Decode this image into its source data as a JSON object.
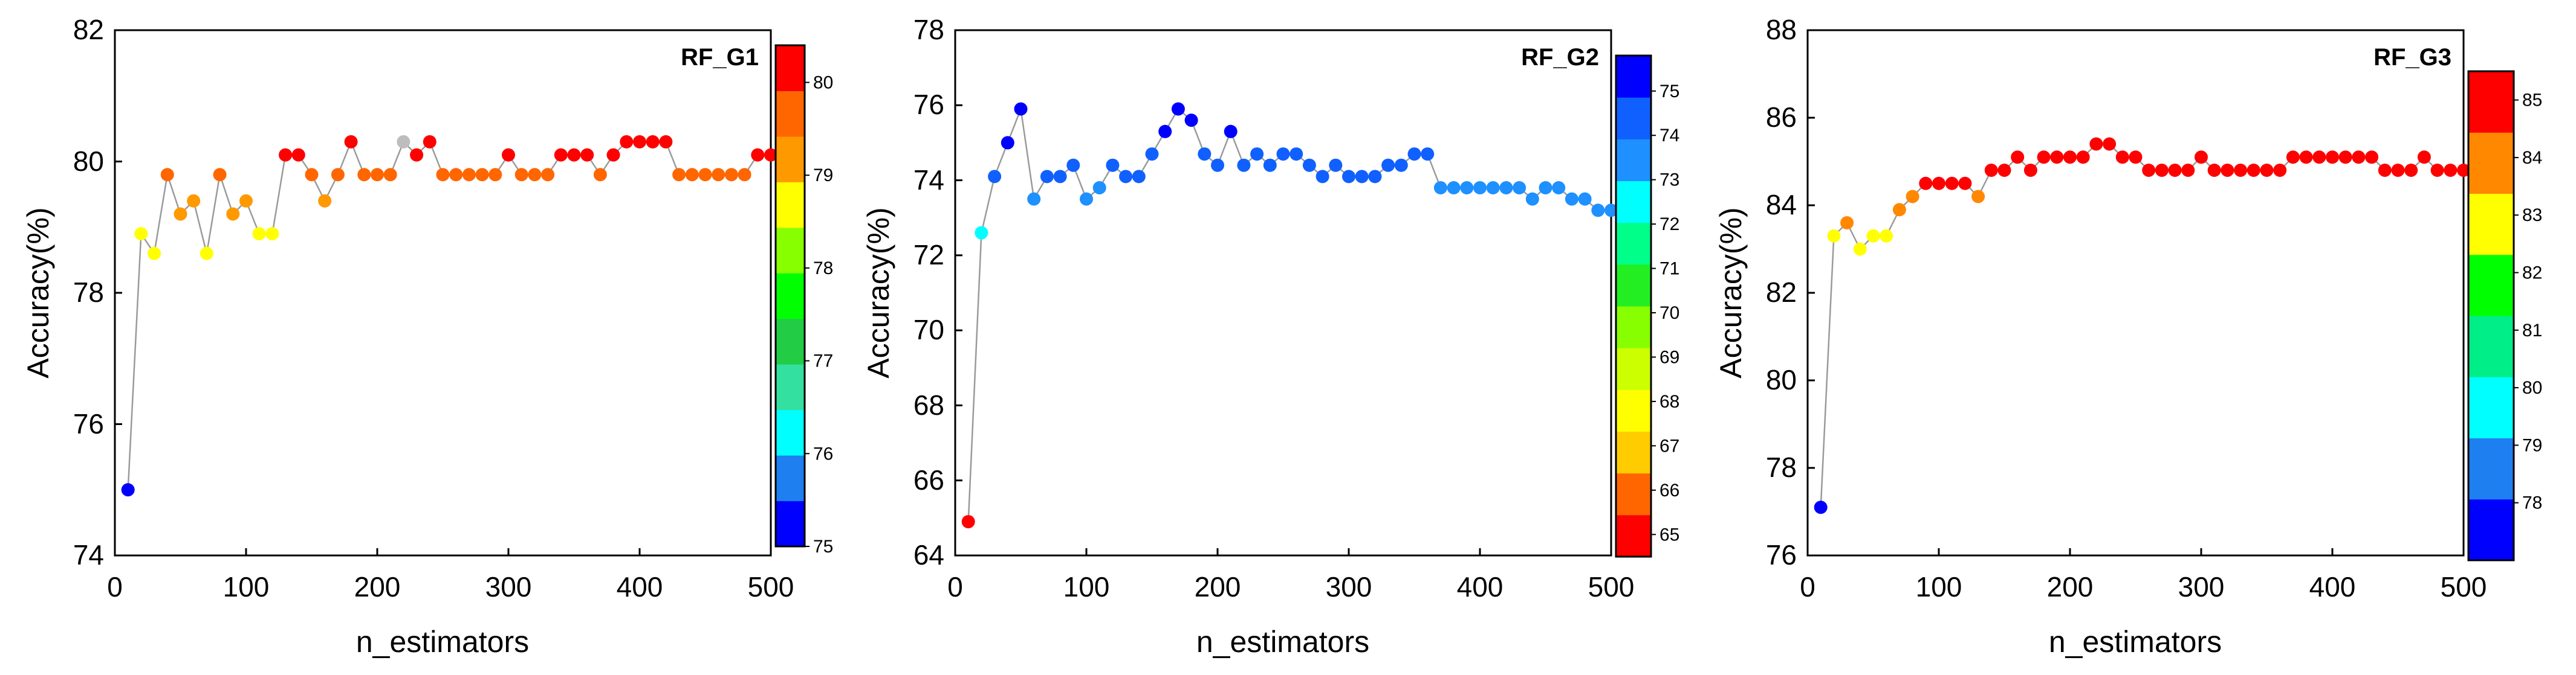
{
  "figure": {
    "panel_count": 3
  },
  "chart_data": [
    {
      "type": "scatter",
      "title": "RF_G1",
      "xlabel": "n_estimators",
      "ylabel": "Accuracy(%)",
      "xlim": [
        0,
        500
      ],
      "ylim": [
        74,
        82
      ],
      "xticks": [
        "0",
        "100",
        "200",
        "300",
        "400",
        "500"
      ],
      "yticks": [
        "74",
        "76",
        "78",
        "80",
        "82"
      ],
      "colorbar": {
        "ticks": [
          "75",
          "76",
          "77",
          "78",
          "79",
          "80"
        ],
        "range": [
          75,
          80.4
        ],
        "colors": [
          "#0000ff",
          "#1e7ff0",
          "#00ffff",
          "#33e0a0",
          "#22cc44",
          "#00ff00",
          "#88ff00",
          "#ffff00",
          "#ff9900",
          "#ff6600",
          "#ff0000"
        ]
      },
      "series": [
        {
          "name": "RF_G1",
          "x": [
            10,
            20,
            30,
            40,
            50,
            60,
            70,
            80,
            90,
            100,
            110,
            120,
            130,
            140,
            150,
            160,
            170,
            180,
            190,
            200,
            210,
            220,
            230,
            240,
            250,
            260,
            270,
            280,
            290,
            300,
            310,
            320,
            330,
            340,
            350,
            360,
            370,
            380,
            390,
            400,
            410,
            420,
            430,
            440,
            450,
            460,
            470,
            480,
            490,
            500
          ],
          "y": [
            75.0,
            78.9,
            78.6,
            79.8,
            79.2,
            79.4,
            78.6,
            79.8,
            79.2,
            79.4,
            78.9,
            78.9,
            80.1,
            80.1,
            79.8,
            79.4,
            79.8,
            80.3,
            79.8,
            79.8,
            79.8,
            80.3,
            80.1,
            80.3,
            79.8,
            79.8,
            79.8,
            79.8,
            79.8,
            80.1,
            79.8,
            79.8,
            79.8,
            80.1,
            80.1,
            80.1,
            79.8,
            80.1,
            80.3,
            80.3,
            80.3,
            80.3,
            79.8,
            79.8,
            79.8,
            79.8,
            79.8,
            79.8,
            80.1,
            80.1
          ],
          "highlight_gray_at_x": 220
        }
      ]
    },
    {
      "type": "scatter",
      "title": "RF_G2",
      "xlabel": "n_estimators",
      "ylabel": "Accuracy(%)",
      "xlim": [
        0,
        500
      ],
      "ylim": [
        64,
        78
      ],
      "xticks": [
        "0",
        "100",
        "200",
        "300",
        "400",
        "500"
      ],
      "yticks": [
        "64",
        "66",
        "68",
        "70",
        "72",
        "74",
        "76",
        "78"
      ],
      "colorbar": {
        "ticks": [
          "65",
          "66",
          "67",
          "68",
          "69",
          "70",
          "71",
          "72",
          "73",
          "74",
          "75"
        ],
        "range": [
          64.5,
          75.8
        ],
        "colors": [
          "#ff0000",
          "#ff6600",
          "#ffcc00",
          "#ffff00",
          "#ccff00",
          "#88ff00",
          "#22ee22",
          "#00ff88",
          "#00ffff",
          "#1e90ff",
          "#1060ff",
          "#0000ff"
        ]
      },
      "series": [
        {
          "name": "RF_G2",
          "x": [
            10,
            20,
            30,
            40,
            50,
            60,
            70,
            80,
            90,
            100,
            110,
            120,
            130,
            140,
            150,
            160,
            170,
            180,
            190,
            200,
            210,
            220,
            230,
            240,
            250,
            260,
            270,
            280,
            290,
            300,
            310,
            320,
            330,
            340,
            350,
            360,
            370,
            380,
            390,
            400,
            410,
            420,
            430,
            440,
            450,
            460,
            470,
            480,
            490,
            500
          ],
          "y": [
            64.9,
            72.6,
            74.1,
            75.0,
            75.9,
            73.5,
            74.1,
            74.1,
            74.4,
            73.5,
            73.8,
            74.4,
            74.1,
            74.1,
            74.7,
            75.3,
            75.9,
            75.6,
            74.7,
            74.4,
            75.3,
            74.4,
            74.7,
            74.4,
            74.7,
            74.7,
            74.4,
            74.1,
            74.4,
            74.1,
            74.1,
            74.1,
            74.4,
            74.4,
            74.7,
            74.7,
            73.8,
            73.8,
            73.8,
            73.8,
            73.8,
            73.8,
            73.8,
            73.5,
            73.8,
            73.8,
            73.5,
            73.5,
            73.2,
            73.2
          ]
        }
      ]
    },
    {
      "type": "scatter",
      "title": "RF_G3",
      "xlabel": "n_estimators",
      "ylabel": "Accuracy(%)",
      "xlim": [
        0,
        500
      ],
      "ylim": [
        76,
        88
      ],
      "xticks": [
        "0",
        "100",
        "200",
        "300",
        "400",
        "500"
      ],
      "yticks": [
        "76",
        "78",
        "80",
        "82",
        "84",
        "86",
        "88"
      ],
      "colorbar": {
        "ticks": [
          "78",
          "79",
          "80",
          "81",
          "82",
          "83",
          "84",
          "85"
        ],
        "range": [
          77.0,
          85.5
        ],
        "colors": [
          "#0000ff",
          "#1e7ff0",
          "#00ffff",
          "#00ee88",
          "#00ff00",
          "#ffff00",
          "#ff8800",
          "#ff0000"
        ]
      },
      "series": [
        {
          "name": "RF_G3",
          "x": [
            10,
            20,
            30,
            40,
            50,
            60,
            70,
            80,
            90,
            100,
            110,
            120,
            130,
            140,
            150,
            160,
            170,
            180,
            190,
            200,
            210,
            220,
            230,
            240,
            250,
            260,
            270,
            280,
            290,
            300,
            310,
            320,
            330,
            340,
            350,
            360,
            370,
            380,
            390,
            400,
            410,
            420,
            430,
            440,
            450,
            460,
            470,
            480,
            490,
            500
          ],
          "y": [
            77.1,
            83.3,
            83.6,
            83.0,
            83.3,
            83.3,
            83.9,
            84.2,
            84.5,
            84.5,
            84.5,
            84.5,
            84.2,
            84.8,
            84.8,
            85.1,
            84.8,
            85.1,
            85.1,
            85.1,
            85.1,
            85.4,
            85.4,
            85.1,
            85.1,
            84.8,
            84.8,
            84.8,
            84.8,
            85.1,
            84.8,
            84.8,
            84.8,
            84.8,
            84.8,
            84.8,
            85.1,
            85.1,
            85.1,
            85.1,
            85.1,
            85.1,
            85.1,
            84.8,
            84.8,
            84.8,
            85.1,
            84.8,
            84.8,
            84.8
          ]
        }
      ]
    }
  ]
}
